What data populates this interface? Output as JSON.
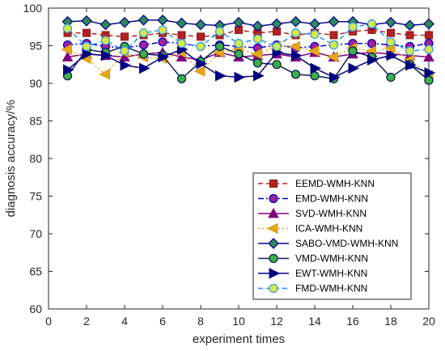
{
  "chart_data": {
    "type": "line",
    "xlabel": "experiment times",
    "ylabel": "diagnosis accuracy/%",
    "xlim": [
      0,
      20
    ],
    "ylim": [
      60,
      100
    ],
    "xticks": [
      0,
      2,
      4,
      6,
      8,
      10,
      12,
      14,
      16,
      18,
      20
    ],
    "yticks": [
      60,
      65,
      70,
      75,
      80,
      85,
      90,
      95,
      100
    ],
    "grid": false,
    "legend_position": "right-center",
    "x": [
      1,
      2,
      3,
      4,
      5,
      6,
      7,
      8,
      9,
      10,
      11,
      12,
      13,
      14,
      15,
      16,
      17,
      18,
      19,
      20
    ],
    "series": [
      {
        "name": "EEMD-WMH-KNN",
        "color": "#b22222",
        "line_style": "dashed",
        "marker": "square",
        "values": [
          96.7,
          96.7,
          96.4,
          96.2,
          96.4,
          96.7,
          96.4,
          96.2,
          96.4,
          97.1,
          96.7,
          96.9,
          96.4,
          96.7,
          96.4,
          96.9,
          97.1,
          96.7,
          96.4,
          96.4
        ]
      },
      {
        "name": "EMD-WMH-KNN",
        "color": "#0000dd",
        "line_style": "dashdot",
        "marker": "circle",
        "values": [
          95.1,
          95.3,
          94.9,
          94.7,
          95.1,
          95.5,
          95.3,
          94.9,
          95.1,
          94.9,
          94.7,
          95.1,
          94.7,
          94.9,
          95.1,
          95.3,
          95.3,
          95.1,
          94.9,
          95.3
        ]
      },
      {
        "name": "SVD-WMH-KNN",
        "color": "#800080",
        "line_style": "solid",
        "marker": "triangle-up",
        "values": [
          93.5,
          93.9,
          93.7,
          93.5,
          93.9,
          94.1,
          93.5,
          93.1,
          94.1,
          93.5,
          93.7,
          93.9,
          93.5,
          94.1,
          93.5,
          93.9,
          94.1,
          93.9,
          93.7,
          93.5
        ]
      },
      {
        "name": "ICA-WMH-KNN",
        "color": "#e6a817",
        "line_style": "dotted",
        "marker": "triangle-left",
        "values": [
          94.5,
          93.3,
          91.2,
          94.1,
          93.5,
          93.3,
          94.1,
          91.6,
          94.1,
          94.5,
          93.9,
          94.9,
          94.9,
          94.3,
          93.5,
          94.7,
          94.3,
          94.7,
          93.1,
          91.0
        ]
      },
      {
        "name": "SABO-VMD-WMH-KNN",
        "color": "#0a0a8c",
        "line_style": "solid",
        "marker": "diamond",
        "values": [
          98.2,
          98.3,
          97.8,
          98.1,
          98.4,
          98.4,
          98.0,
          97.8,
          97.7,
          98.1,
          97.6,
          97.9,
          98.2,
          97.9,
          98.2,
          98.2,
          97.8,
          98.1,
          97.7,
          97.9
        ]
      },
      {
        "name": "VMD-WMH-KNN",
        "color": "#0a1f5c",
        "line_style": "solid",
        "marker": "circle-filled",
        "values": [
          91.0,
          94.5,
          94.1,
          94.9,
          93.9,
          93.7,
          90.6,
          92.9,
          94.9,
          93.9,
          92.7,
          92.5,
          91.2,
          91.0,
          90.6,
          94.3,
          93.5,
          90.8,
          92.5,
          90.4
        ]
      },
      {
        "name": "EWT-WMH-KNN",
        "color": "#000080",
        "line_style": "solid",
        "marker": "triangle-right",
        "values": [
          91.8,
          93.9,
          93.7,
          92.4,
          92.0,
          93.5,
          94.5,
          92.6,
          91.0,
          90.8,
          91.0,
          94.1,
          93.7,
          92.0,
          90.8,
          92.0,
          93.1,
          93.7,
          92.4,
          91.4
        ]
      },
      {
        "name": "FMD-WMH-KNN",
        "color": "#1e90ff",
        "line_style": "dashed",
        "marker": "circle-yellow",
        "values": [
          97.3,
          94.9,
          95.7,
          94.3,
          96.7,
          97.1,
          95.3,
          94.9,
          96.9,
          95.3,
          95.9,
          94.9,
          96.7,
          96.5,
          95.1,
          97.5,
          97.9,
          95.5,
          94.3,
          94.5
        ]
      }
    ]
  }
}
